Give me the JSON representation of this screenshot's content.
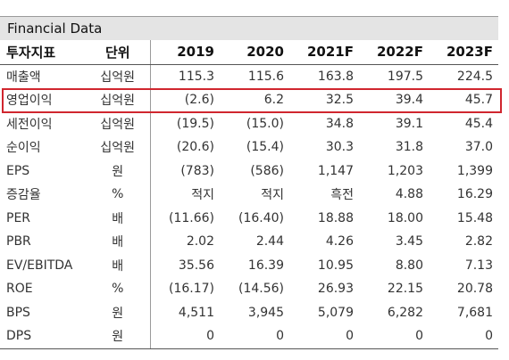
{
  "title": "Financial Data",
  "headers": [
    "투자지표",
    "단위",
    "2019",
    "2020",
    "2021F",
    "2022F",
    "2023F"
  ],
  "rows": [
    {
      "item": "매출액",
      "unit": "십억원",
      "values": [
        "115.3",
        "115.6",
        "163.8",
        "197.5",
        "224.5"
      ]
    },
    {
      "item": "영업이익",
      "unit": "십억원",
      "values": [
        "(2.6)",
        "6.2",
        "32.5",
        "39.4",
        "45.7"
      ]
    },
    {
      "item": "세전이익",
      "unit": "십억원",
      "values": [
        "(19.5)",
        "(15.0)",
        "34.8",
        "39.1",
        "45.4"
      ]
    },
    {
      "item": "순이익",
      "unit": "십억원",
      "values": [
        "(20.6)",
        "(15.4)",
        "30.3",
        "31.8",
        "37.0"
      ]
    },
    {
      "item": "EPS",
      "unit": "원",
      "values": [
        "(783)",
        "(586)",
        "1,147",
        "1,203",
        "1,399"
      ]
    },
    {
      "item": "증감율",
      "unit": "%",
      "values": [
        "적지",
        "적지",
        "흑전",
        "4.88",
        "16.29"
      ]
    },
    {
      "item": "PER",
      "unit": "배",
      "values": [
        "(11.66)",
        "(16.40)",
        "18.88",
        "18.00",
        "15.48"
      ]
    },
    {
      "item": "PBR",
      "unit": "배",
      "values": [
        "2.02",
        "2.44",
        "4.26",
        "3.45",
        "2.82"
      ]
    },
    {
      "item": "EV/EBITDA",
      "unit": "배",
      "values": [
        "35.56",
        "16.39",
        "10.95",
        "8.80",
        "7.13"
      ]
    },
    {
      "item": "ROE",
      "unit": "%",
      "values": [
        "(16.17)",
        "(14.56)",
        "26.93",
        "22.15",
        "20.78"
      ]
    },
    {
      "item": "BPS",
      "unit": "원",
      "values": [
        "4,511",
        "3,945",
        "5,079",
        "6,282",
        "7,681"
      ]
    },
    {
      "item": "DPS",
      "unit": "원",
      "values": [
        "0",
        "0",
        "0",
        "0",
        "0"
      ]
    }
  ],
  "highlight_color": "#d0262e",
  "header_bg": "#e4e4e4"
}
